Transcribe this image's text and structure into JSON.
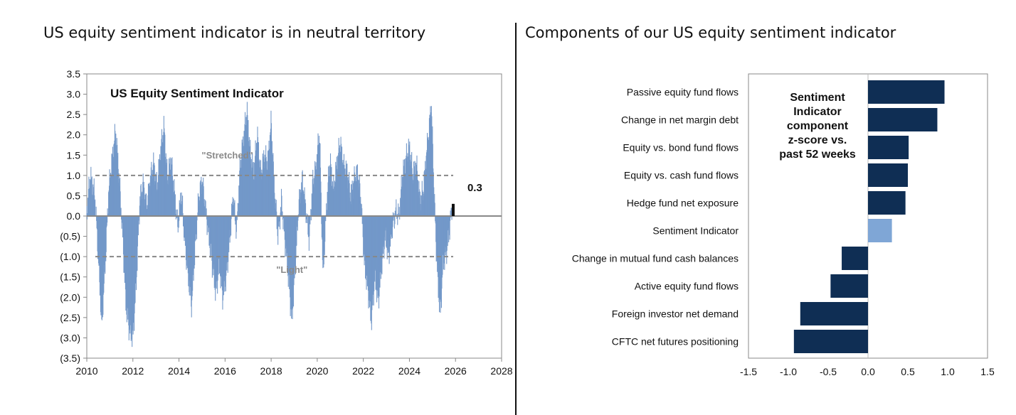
{
  "left_title": "US equity sentiment indicator is in neutral territory",
  "right_title": "Components of our US equity sentiment indicator",
  "chart_data": [
    {
      "type": "bar",
      "title": "US Equity Sentiment Indicator",
      "xlim": [
        2010,
        2028
      ],
      "ylim": [
        -3.5,
        3.5
      ],
      "x_ticks": [
        2010,
        2012,
        2014,
        2016,
        2018,
        2020,
        2022,
        2024,
        2026,
        2028
      ],
      "x_tick_labels": [
        "2010",
        "2012",
        "2014",
        "2016",
        "2018",
        "2020",
        "2022",
        "2024",
        "2026",
        "2028"
      ],
      "y_ticks": [
        3.5,
        3.0,
        2.5,
        2.0,
        1.5,
        1.0,
        0.5,
        0.0,
        -0.5,
        -1.0,
        -1.5,
        -2.0,
        -2.5,
        -3.0,
        -3.5
      ],
      "y_tick_labels": [
        "3.5",
        "3.0",
        "2.5",
        "2.0",
        "1.5",
        "1.0",
        "0.5",
        "0.0",
        "(0.5)",
        "(1.0)",
        "(1.5)",
        "(2.0)",
        "(2.5)",
        "(3.0)",
        "(3.5)"
      ],
      "thresholds": [
        {
          "label": "\"Stretched\"",
          "value": 1.0
        },
        {
          "label": "\"Light\"",
          "value": -1.0
        }
      ],
      "latest": {
        "x": 2025.9,
        "value": 0.3,
        "label": "0.3"
      },
      "series_color": "#7398c9",
      "keypoints": [
        [
          2010.0,
          0.1
        ],
        [
          2010.15,
          1.0
        ],
        [
          2010.35,
          0.5
        ],
        [
          2010.5,
          -1.0
        ],
        [
          2010.65,
          -2.7
        ],
        [
          2010.8,
          -1.2
        ],
        [
          2010.95,
          0.6
        ],
        [
          2011.1,
          1.4
        ],
        [
          2011.25,
          2.1
        ],
        [
          2011.4,
          1.0
        ],
        [
          2011.55,
          -0.4
        ],
        [
          2011.7,
          -2.2
        ],
        [
          2011.85,
          -2.8
        ],
        [
          2012.0,
          -3.0
        ],
        [
          2012.15,
          -1.6
        ],
        [
          2012.3,
          0.4
        ],
        [
          2012.45,
          0.8
        ],
        [
          2012.6,
          0.2
        ],
        [
          2012.75,
          0.9
        ],
        [
          2012.9,
          1.3
        ],
        [
          2013.05,
          0.7
        ],
        [
          2013.2,
          1.6
        ],
        [
          2013.35,
          2.2
        ],
        [
          2013.5,
          0.9
        ],
        [
          2013.65,
          1.4
        ],
        [
          2013.8,
          0.6
        ],
        [
          2013.95,
          -0.3
        ],
        [
          2014.1,
          0.6
        ],
        [
          2014.25,
          -0.6
        ],
        [
          2014.4,
          -1.5
        ],
        [
          2014.55,
          -2.2
        ],
        [
          2014.7,
          -0.8
        ],
        [
          2014.85,
          0.4
        ],
        [
          2015.0,
          0.9
        ],
        [
          2015.15,
          0.2
        ],
        [
          2015.3,
          -0.5
        ],
        [
          2015.45,
          -1.2
        ],
        [
          2015.6,
          -1.9
        ],
        [
          2015.75,
          -1.2
        ],
        [
          2015.9,
          -2.0
        ],
        [
          2016.05,
          -1.5
        ],
        [
          2016.2,
          -0.6
        ],
        [
          2016.35,
          0.5
        ],
        [
          2016.5,
          -0.4
        ],
        [
          2016.65,
          1.2
        ],
        [
          2016.8,
          1.9
        ],
        [
          2016.95,
          2.6
        ],
        [
          2017.1,
          1.5
        ],
        [
          2017.25,
          1.1
        ],
        [
          2017.4,
          2.0
        ],
        [
          2017.55,
          1.0
        ],
        [
          2017.7,
          1.5
        ],
        [
          2017.85,
          1.3
        ],
        [
          2018.0,
          2.3
        ],
        [
          2018.15,
          0.6
        ],
        [
          2018.3,
          -0.5
        ],
        [
          2018.45,
          0.4
        ],
        [
          2018.6,
          -0.6
        ],
        [
          2018.75,
          -1.5
        ],
        [
          2018.9,
          -2.6
        ],
        [
          2019.05,
          -1.2
        ],
        [
          2019.2,
          0.3
        ],
        [
          2019.35,
          0.9
        ],
        [
          2019.5,
          0.2
        ],
        [
          2019.65,
          -0.6
        ],
        [
          2019.8,
          0.8
        ],
        [
          2019.95,
          1.2
        ],
        [
          2020.1,
          2.1
        ],
        [
          2020.25,
          -1.5
        ],
        [
          2020.4,
          0.2
        ],
        [
          2020.55,
          1.4
        ],
        [
          2020.7,
          0.6
        ],
        [
          2020.85,
          1.3
        ],
        [
          2021.0,
          1.8
        ],
        [
          2021.15,
          1.2
        ],
        [
          2021.3,
          1.1
        ],
        [
          2021.45,
          0.5
        ],
        [
          2021.6,
          0.9
        ],
        [
          2021.75,
          1.1
        ],
        [
          2021.9,
          0.4
        ],
        [
          2022.05,
          -1.2
        ],
        [
          2022.2,
          -1.8
        ],
        [
          2022.35,
          -2.6
        ],
        [
          2022.5,
          -1.5
        ],
        [
          2022.65,
          -2.1
        ],
        [
          2022.8,
          -1.2
        ],
        [
          2022.95,
          -0.5
        ],
        [
          2023.1,
          -1.0
        ],
        [
          2023.25,
          -0.3
        ],
        [
          2023.4,
          0.1
        ],
        [
          2023.55,
          0.0
        ],
        [
          2023.7,
          1.0
        ],
        [
          2023.85,
          1.4
        ],
        [
          2024.0,
          1.7
        ],
        [
          2024.15,
          1.0
        ],
        [
          2024.3,
          1.3
        ],
        [
          2024.45,
          0.4
        ],
        [
          2024.6,
          0.6
        ],
        [
          2024.75,
          1.6
        ],
        [
          2024.85,
          2.1
        ],
        [
          2024.95,
          2.8
        ],
        [
          2025.05,
          1.0
        ],
        [
          2025.15,
          -0.6
        ],
        [
          2025.25,
          -1.8
        ],
        [
          2025.35,
          -2.4
        ],
        [
          2025.45,
          -1.2
        ],
        [
          2025.6,
          -0.9
        ],
        [
          2025.75,
          -0.3
        ],
        [
          2025.85,
          0.3
        ]
      ]
    },
    {
      "type": "bar",
      "orientation": "horizontal",
      "title": "Sentiment Indicator component z-score vs. past 52 weeks",
      "title_lines": [
        "Sentiment",
        "Indicator",
        "component",
        "z-score vs.",
        "past 52 weeks"
      ],
      "xlim": [
        -1.5,
        1.5
      ],
      "x_ticks": [
        -1.5,
        -1.0,
        -0.5,
        0.0,
        0.5,
        1.0,
        1.5
      ],
      "x_tick_labels": [
        "-1.5",
        "-1.0",
        "-0.5",
        "0.0",
        "0.5",
        "1.0",
        "1.5"
      ],
      "categories": [
        "Passive equity fund flows",
        "Change in net margin debt",
        "Equity vs. bond fund flows",
        "Equity vs. cash fund flows",
        "Hedge fund net exposure",
        "Sentiment Indicator",
        "Change in mutual fund cash balances",
        "Active equity fund flows",
        "Foreign investor net demand",
        "CFTC net futures positioning"
      ],
      "values": [
        0.96,
        0.87,
        0.51,
        0.5,
        0.47,
        0.3,
        -0.33,
        -0.47,
        -0.85,
        -0.93
      ],
      "colors": [
        "#0f2e54",
        "#0f2e54",
        "#0f2e54",
        "#0f2e54",
        "#0f2e54",
        "#7fa6d6",
        "#0f2e54",
        "#0f2e54",
        "#0f2e54",
        "#0f2e54"
      ]
    }
  ]
}
